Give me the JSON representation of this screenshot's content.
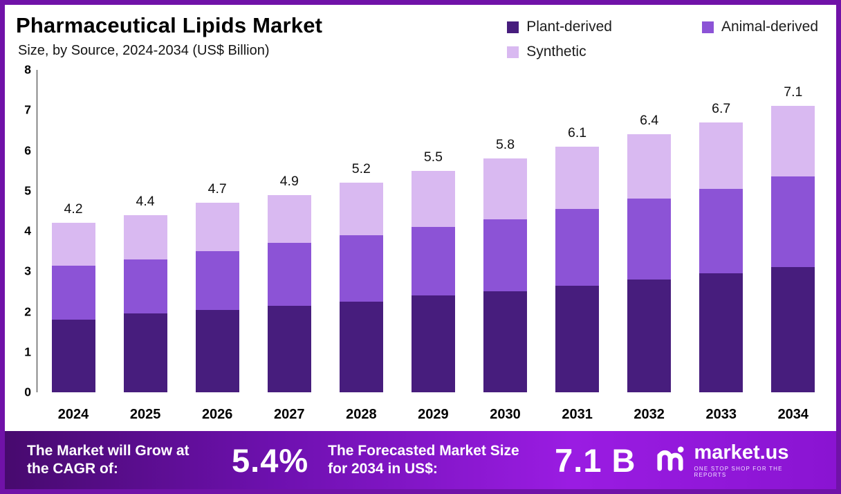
{
  "header": {
    "title": "Pharmaceutical Lipids Market",
    "subtitle": "Size, by Source, 2024-2034 (US$ Billion)"
  },
  "legend": [
    {
      "label": "Plant-derived",
      "color": "#471d7d"
    },
    {
      "label": "Animal-derived",
      "color": "#8c53d6"
    },
    {
      "label": "Synthetic",
      "color": "#d9b9f1"
    }
  ],
  "chart_data": {
    "type": "bar",
    "stacked": true,
    "title": "Pharmaceutical Lipids Market Size, by Source, 2024-2034 (US$ Billion)",
    "xlabel": "",
    "ylabel": "US$ Billion",
    "ylim": [
      0,
      8
    ],
    "yticks": [
      0,
      1,
      2,
      3,
      4,
      5,
      6,
      7,
      8
    ],
    "grid": false,
    "legend_position": "top-right",
    "categories": [
      "2024",
      "2025",
      "2026",
      "2027",
      "2028",
      "2029",
      "2030",
      "2031",
      "2032",
      "2033",
      "2034"
    ],
    "series": [
      {
        "name": "Plant-derived",
        "color": "#471d7d",
        "values": [
          1.8,
          1.95,
          2.05,
          2.15,
          2.25,
          2.4,
          2.5,
          2.65,
          2.8,
          2.95,
          3.1
        ]
      },
      {
        "name": "Animal-derived",
        "color": "#8c53d6",
        "values": [
          1.35,
          1.35,
          1.45,
          1.55,
          1.65,
          1.7,
          1.8,
          1.9,
          2.0,
          2.1,
          2.25
        ]
      },
      {
        "name": "Synthetic",
        "color": "#d9b9f1",
        "values": [
          1.05,
          1.1,
          1.2,
          1.2,
          1.3,
          1.4,
          1.5,
          1.55,
          1.6,
          1.65,
          1.75
        ]
      }
    ],
    "totals": [
      4.2,
      4.4,
      4.7,
      4.9,
      5.2,
      5.5,
      5.8,
      6.1,
      6.4,
      6.7,
      7.1
    ]
  },
  "footer": {
    "cagr_label": "The Market will Grow at the CAGR of:",
    "cagr_value": "5.4%",
    "forecast_label": "The Forecasted Market Size for 2034 in US$:",
    "forecast_value": "7.1 B",
    "brand": "market.us",
    "brand_tagline": "ONE STOP SHOP FOR THE REPORTS"
  }
}
